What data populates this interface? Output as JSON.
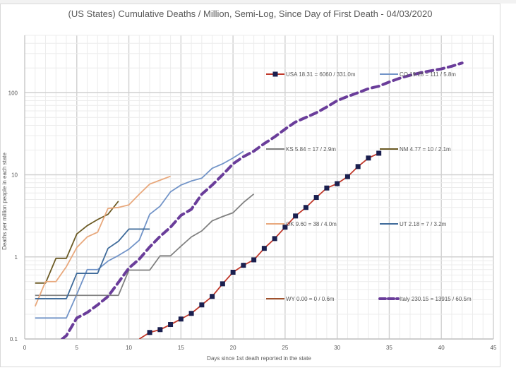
{
  "chart_data": {
    "type": "line",
    "title": "(US States) Cumulative Deaths / Million, Semi-Log, Since Day of First Death - 04/03/2020",
    "xlabel": "Days since 1st death reported in the state",
    "ylabel": "Deaths per million people in each state",
    "yscale": "log",
    "xlim": [
      0,
      45
    ],
    "ylim": [
      0.1,
      500
    ],
    "grid": true,
    "xticks": [
      "0",
      "5",
      "10",
      "15",
      "20",
      "25",
      "30",
      "35",
      "40",
      "45"
    ],
    "xtick_values": [
      0,
      5,
      10,
      15,
      20,
      25,
      30,
      35,
      40,
      45
    ],
    "yticks": [
      "0.1",
      "1",
      "10",
      "100"
    ],
    "ytick_values": [
      0.1,
      1,
      10,
      100
    ],
    "legend_placement": "inside-grid",
    "series": [
      {
        "name": "USA",
        "legend": "USA 18.31 = 6060 / 331.0m",
        "color": "#c0392b",
        "marker": "square",
        "marker_color": "#1a1f4f",
        "dash": false,
        "x": [
          11,
          12,
          13,
          14,
          15,
          16,
          17,
          18,
          19,
          20,
          21,
          22,
          23,
          24,
          25,
          26,
          27,
          28,
          29,
          30,
          31,
          32,
          33,
          34
        ],
        "y": [
          0.1,
          0.12,
          0.13,
          0.15,
          0.175,
          0.205,
          0.26,
          0.33,
          0.47,
          0.65,
          0.79,
          0.92,
          1.27,
          1.67,
          2.3,
          3.15,
          4.0,
          5.3,
          6.9,
          7.8,
          9.5,
          12.6,
          16,
          18.31
        ]
      },
      {
        "name": "CO",
        "legend": "CO 19.28 = 111 / 5.8m",
        "color": "#7294c8",
        "dash": false,
        "x": [
          1,
          2,
          3,
          4,
          5,
          6,
          7,
          8,
          9,
          10,
          11,
          12,
          13,
          14,
          15,
          16,
          17,
          18,
          19,
          20,
          21
        ],
        "y": [
          0.18,
          0.18,
          0.18,
          0.18,
          0.35,
          0.7,
          0.7,
          0.89,
          1.04,
          1.24,
          1.6,
          3.3,
          4.15,
          6.2,
          7.5,
          8.4,
          9.1,
          12,
          13.6,
          16,
          19.28
        ]
      },
      {
        "name": "KS",
        "legend": "KS 5.84 = 17 / 2.9m",
        "color": "#808080",
        "dash": false,
        "x": [
          1,
          2,
          3,
          4,
          5,
          6,
          7,
          8,
          9,
          10,
          11,
          12,
          13,
          14,
          15,
          16,
          17,
          18,
          19,
          20,
          21,
          22
        ],
        "y": [
          0.34,
          0.34,
          0.34,
          0.34,
          0.34,
          0.34,
          0.34,
          0.34,
          0.34,
          0.69,
          0.69,
          0.69,
          1.03,
          1.03,
          1.35,
          1.75,
          2.07,
          2.75,
          3.1,
          3.45,
          4.6,
          5.84
        ]
      },
      {
        "name": "NM",
        "legend": "NM 4.77 = 10 / 2.1m",
        "color": "#6b5a24",
        "dash": false,
        "x": [
          1,
          2,
          3,
          4,
          5,
          6,
          7,
          8,
          9
        ],
        "y": [
          0.48,
          0.48,
          0.96,
          0.96,
          1.9,
          2.4,
          2.85,
          3.3,
          4.77
        ]
      },
      {
        "name": "OK",
        "legend": "OK 9.60 = 38 / 4.0m",
        "color": "#e8a87c",
        "dash": false,
        "x": [
          1,
          2,
          3,
          4,
          5,
          6,
          7,
          8,
          9,
          10,
          11,
          12,
          13,
          14
        ],
        "y": [
          0.25,
          0.5,
          0.5,
          0.76,
          1.3,
          1.75,
          2.0,
          3.9,
          4.0,
          4.3,
          5.8,
          7.7,
          8.6,
          9.6
        ]
      },
      {
        "name": "UT",
        "legend": "UT 2.18 = 7 / 3.2m",
        "color": "#3e6a9a",
        "dash": false,
        "x": [
          1,
          2,
          3,
          4,
          5,
          6,
          7,
          8,
          9,
          10,
          11,
          12
        ],
        "y": [
          0.31,
          0.31,
          0.31,
          0.31,
          0.63,
          0.63,
          0.63,
          1.27,
          1.55,
          2.18,
          2.18,
          2.18
        ]
      },
      {
        "name": "WY",
        "legend": "WY 0.00 = 0 / 0.6m",
        "color": "#a0522d",
        "dash": false,
        "x": [],
        "y": []
      },
      {
        "name": "Italy",
        "legend": "Italy 230.15 = 13915 / 60.5m",
        "color": "#6a3d9a",
        "dash": true,
        "x": [
          3.6,
          4,
          5,
          6,
          7,
          8,
          9,
          10,
          11,
          12,
          13,
          14,
          15,
          16,
          17,
          18,
          19,
          20,
          21,
          22,
          23,
          24,
          25,
          26,
          27,
          28,
          29,
          30,
          31,
          32,
          33,
          34,
          35,
          36,
          37,
          38,
          39,
          40,
          41,
          42
        ],
        "y": [
          0.1,
          0.11,
          0.18,
          0.21,
          0.26,
          0.33,
          0.49,
          0.73,
          0.94,
          1.32,
          1.78,
          2.3,
          3.2,
          3.8,
          5.8,
          7.5,
          10,
          13.6,
          16.6,
          19.4,
          24,
          29,
          36,
          44,
          50,
          57,
          67,
          80,
          90,
          100,
          112,
          120,
          135,
          150,
          163,
          175,
          185,
          195,
          210,
          230.15
        ]
      }
    ]
  }
}
